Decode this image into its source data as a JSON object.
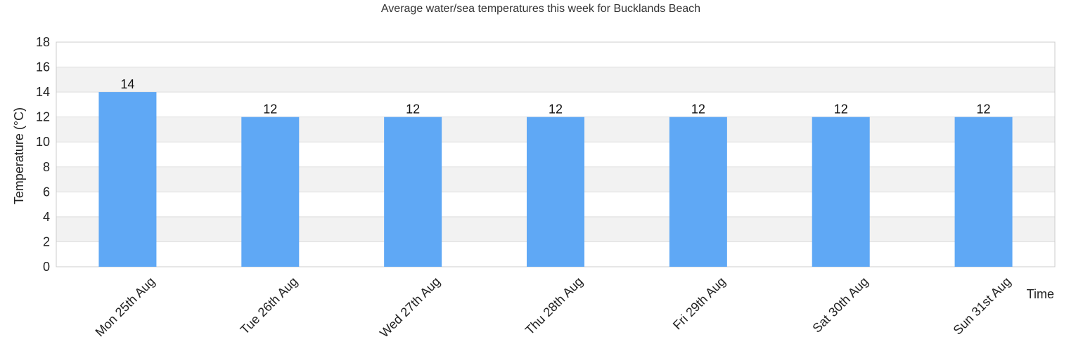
{
  "chart_data": {
    "type": "bar",
    "title": "Average water/sea temperatures this week for Bucklands Beach",
    "xlabel": "Time",
    "ylabel": "Temperature (°C)",
    "categories": [
      "Mon 25th Aug",
      "Tue 26th Aug",
      "Wed 27th Aug",
      "Thu 28th Aug",
      "Fri 29th Aug",
      "Sat 30th Aug",
      "Sun 31st Aug"
    ],
    "values": [
      14,
      12,
      12,
      12,
      12,
      12,
      12
    ],
    "ylim": [
      0,
      18
    ],
    "yticks": [
      0,
      2,
      4,
      6,
      8,
      10,
      12,
      14,
      16,
      18
    ],
    "grid": true,
    "legend": "none",
    "colors": {
      "bar": "#5fa8f5",
      "band": "#f2f2f2",
      "grid": "#dddddd",
      "axis": "#cccccc"
    }
  }
}
